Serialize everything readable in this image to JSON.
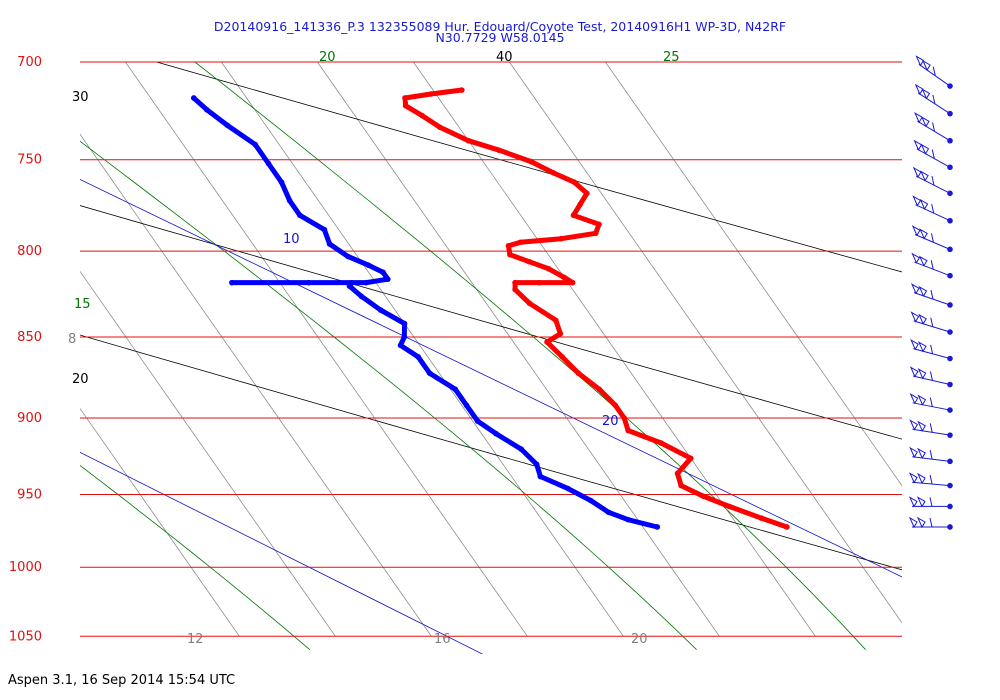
{
  "header": {
    "title_line1": "D20140916_141336_P.3 132355089 Hur. Edouard/Coyote Test, 20140916H1 WP-3D, N42RF",
    "title_line2": "N30.7729 W58.0145"
  },
  "footer": {
    "text": "Aspen 3.1, 16 Sep 2014  15:54 UTC"
  },
  "colors": {
    "isobar": "#e01010",
    "temperature": "#ff0000",
    "dewpoint": "#0000ff",
    "mixing_ratio": "#1010d0",
    "moist_adiabat": "#007700",
    "dry_adiabat": "#000000",
    "isotherm": "#808080",
    "barb": "#1a1ad6"
  },
  "chart_data": {
    "type": "skew-t",
    "pressure_levels": [
      "700",
      "750",
      "800",
      "850",
      "900",
      "950",
      "1000",
      "1050"
    ],
    "dry_adiabat_labels": [
      "30",
      "40",
      "20"
    ],
    "moist_adiabat_labels": [
      "20",
      "25",
      "15"
    ],
    "mixing_ratio_labels": [
      "10",
      "20"
    ],
    "isotherm_labels": [
      "8",
      "12",
      "16",
      "20"
    ],
    "temperature_profile": [
      {
        "p": 714,
        "t": 20.6
      },
      {
        "p": 716,
        "t": 19.9
      },
      {
        "p": 718,
        "t": 19.3
      },
      {
        "p": 722,
        "t": 19.2
      },
      {
        "p": 727,
        "t": 19.4
      },
      {
        "p": 733,
        "t": 19.6
      },
      {
        "p": 740,
        "t": 20.0
      },
      {
        "p": 745,
        "t": 20.5
      },
      {
        "p": 751,
        "t": 21.0
      },
      {
        "p": 757,
        "t": 21.3
      },
      {
        "p": 762,
        "t": 21.6
      },
      {
        "p": 768,
        "t": 21.7
      },
      {
        "p": 774,
        "t": 21.4
      },
      {
        "p": 780,
        "t": 21.1
      },
      {
        "p": 785,
        "t": 21.5
      },
      {
        "p": 790,
        "t": 21.3
      },
      {
        "p": 793,
        "t": 20.5
      },
      {
        "p": 795,
        "t": 19.6
      },
      {
        "p": 797,
        "t": 19.3
      },
      {
        "p": 802,
        "t": 19.2
      },
      {
        "p": 806,
        "t": 19.5
      },
      {
        "p": 810,
        "t": 19.8
      },
      {
        "p": 815,
        "t": 20.0
      },
      {
        "p": 818,
        "t": 20.1
      },
      {
        "p": 818,
        "t": 19.4
      },
      {
        "p": 818,
        "t": 18.9
      },
      {
        "p": 822,
        "t": 18.8
      },
      {
        "p": 830,
        "t": 18.9
      },
      {
        "p": 840,
        "t": 19.2
      },
      {
        "p": 848,
        "t": 19.1
      },
      {
        "p": 853,
        "t": 18.7
      },
      {
        "p": 862,
        "t": 18.8
      },
      {
        "p": 872,
        "t": 18.9
      },
      {
        "p": 882,
        "t": 19.1
      },
      {
        "p": 892,
        "t": 19.2
      },
      {
        "p": 900,
        "t": 19.2
      },
      {
        "p": 908,
        "t": 19.1
      },
      {
        "p": 916,
        "t": 19.6
      },
      {
        "p": 926,
        "t": 20.0
      },
      {
        "p": 936,
        "t": 19.5
      },
      {
        "p": 944,
        "t": 19.4
      },
      {
        "p": 951,
        "t": 19.7
      },
      {
        "p": 958,
        "t": 20.1
      },
      {
        "p": 966,
        "t": 20.6
      },
      {
        "p": 972,
        "t": 21.0
      }
    ],
    "dewpoint_profile": [
      {
        "p": 718,
        "t": 14.9
      },
      {
        "p": 724,
        "t": 15.0
      },
      {
        "p": 732,
        "t": 15.2
      },
      {
        "p": 742,
        "t": 15.5
      },
      {
        "p": 752,
        "t": 15.5
      },
      {
        "p": 762,
        "t": 15.5
      },
      {
        "p": 772,
        "t": 15.4
      },
      {
        "p": 780,
        "t": 15.4
      },
      {
        "p": 788,
        "t": 15.7
      },
      {
        "p": 796,
        "t": 15.6
      },
      {
        "p": 803,
        "t": 15.8
      },
      {
        "p": 808,
        "t": 16.1
      },
      {
        "p": 812,
        "t": 16.3
      },
      {
        "p": 816,
        "t": 16.3
      },
      {
        "p": 818,
        "t": 15.8
      },
      {
        "p": 818,
        "t": 14.6
      },
      {
        "p": 818,
        "t": 13.0
      },
      {
        "p": 818,
        "t": 15.5
      },
      {
        "p": 820,
        "t": 15.4
      },
      {
        "p": 826,
        "t": 15.5
      },
      {
        "p": 834,
        "t": 15.7
      },
      {
        "p": 842,
        "t": 16.0
      },
      {
        "p": 850,
        "t": 15.8
      },
      {
        "p": 855,
        "t": 15.6
      },
      {
        "p": 862,
        "t": 15.8
      },
      {
        "p": 872,
        "t": 15.8
      },
      {
        "p": 882,
        "t": 16.1
      },
      {
        "p": 892,
        "t": 16.1
      },
      {
        "p": 902,
        "t": 16.1
      },
      {
        "p": 910,
        "t": 16.3
      },
      {
        "p": 920,
        "t": 16.6
      },
      {
        "p": 930,
        "t": 16.7
      },
      {
        "p": 938,
        "t": 16.6
      },
      {
        "p": 946,
        "t": 17.0
      },
      {
        "p": 954,
        "t": 17.3
      },
      {
        "p": 962,
        "t": 17.5
      },
      {
        "p": 967,
        "t": 17.8
      },
      {
        "p": 972,
        "t": 18.3
      }
    ],
    "wind_barbs_pressure": [
      712,
      726,
      740,
      754,
      768,
      783,
      799,
      814,
      831,
      847,
      863,
      879,
      895,
      911,
      928,
      944,
      958,
      972
    ]
  }
}
